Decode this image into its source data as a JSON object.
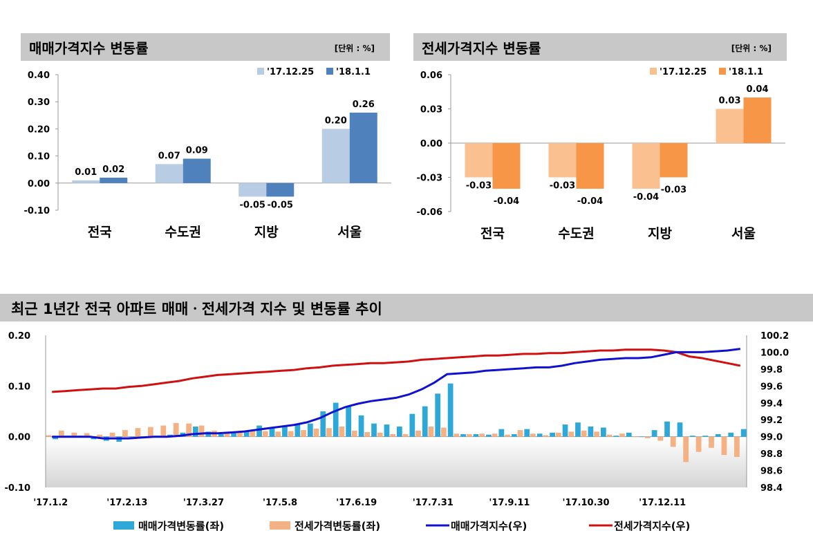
{
  "colors": {
    "sale_prev": "#b8cce4",
    "sale_curr": "#4f81bd",
    "jeonse_prev": "#fac090",
    "jeonse_curr": "#f79646",
    "weekly_sale_bar": "#2ea8d8",
    "weekly_jeonse_bar": "#f4b183",
    "sale_index_line": "#1010d0",
    "jeonse_index_line": "#d01010"
  },
  "chart_data": [
    {
      "type": "bar",
      "title": "매매가격지수 변동률",
      "unit": "[단위 : %]",
      "categories": [
        "전국",
        "수도권",
        "지방",
        "서울"
      ],
      "series": [
        {
          "name": "'17.12.25",
          "values": [
            0.01,
            0.07,
            -0.05,
            0.2
          ],
          "labels": [
            "0.01",
            "0.07",
            "-0.05",
            "0.20"
          ]
        },
        {
          "name": "'18.1.1",
          "values": [
            0.02,
            0.09,
            -0.05,
            0.26
          ],
          "labels": [
            "0.02",
            "0.09",
            "-0.05",
            "0.26"
          ]
        }
      ],
      "ylim": [
        -0.1,
        0.4
      ],
      "yticks": [
        -0.1,
        0.0,
        0.1,
        0.2,
        0.3,
        0.4
      ],
      "ytick_labels": [
        "-0.10",
        "0.00",
        "0.10",
        "0.20",
        "0.30",
        "0.40"
      ],
      "legend": "top-right"
    },
    {
      "type": "bar",
      "title": "전세가격지수 변동률",
      "unit": "[단위 : %]",
      "categories": [
        "전국",
        "수도권",
        "지방",
        "서울"
      ],
      "series": [
        {
          "name": "'17.12.25",
          "values": [
            -0.03,
            -0.03,
            -0.04,
            0.03
          ],
          "labels": [
            "-0.03",
            "-0.03",
            "-0.04",
            "0.03"
          ]
        },
        {
          "name": "'18.1.1",
          "values": [
            -0.04,
            -0.04,
            -0.03,
            0.04
          ],
          "labels": [
            "-0.04",
            "-0.04",
            "-0.03",
            "0.04"
          ]
        }
      ],
      "ylim": [
        -0.06,
        0.06
      ],
      "yticks": [
        -0.06,
        -0.03,
        0.0,
        0.03,
        0.06
      ],
      "ytick_labels": [
        "-0.06",
        "-0.03",
        "0.00",
        "0.03",
        "0.06"
      ],
      "legend": "top-right"
    },
    {
      "type": "bar+line",
      "title": "최근 1년간 전국 아파트 매매ㆍ전세가격 지수 및 변동률 추이",
      "x_tick_labels": [
        "'17.1.2",
        "'17.2.13",
        "'17.3.27",
        "'17.5.8",
        "'17.6.19",
        "'17.7.31",
        "'17.9.11",
        "'17.10.30",
        "'17.12.11"
      ],
      "y_left": {
        "lim": [
          -0.1,
          0.2
        ],
        "ticks": [
          -0.1,
          0.0,
          0.1,
          0.2
        ],
        "tick_labels": [
          "-0.10",
          "0.00",
          "0.10",
          "0.20"
        ]
      },
      "y_right": {
        "lim": [
          98.4,
          100.2
        ],
        "ticks": [
          98.4,
          98.6,
          98.8,
          99.0,
          99.2,
          99.4,
          99.6,
          99.8,
          100.0,
          100.2
        ],
        "tick_labels": [
          "98.4",
          "98.6",
          "98.8",
          "99.0",
          "99.2",
          "99.4",
          "99.6",
          "99.8",
          "100.0",
          "100.2"
        ]
      },
      "series": [
        {
          "name": "매매가격변동률(좌)",
          "kind": "bar",
          "axis": "left",
          "values": [
            -0.005,
            0.002,
            0.002,
            -0.005,
            -0.008,
            -0.01,
            0.0,
            0.0,
            0.002,
            0.004,
            0.008,
            0.02,
            0.01,
            0.005,
            0.007,
            0.012,
            0.022,
            0.016,
            0.02,
            0.024,
            0.026,
            0.05,
            0.067,
            0.06,
            0.042,
            0.026,
            0.024,
            0.02,
            0.045,
            0.06,
            0.085,
            0.105,
            0.005,
            0.005,
            0.004,
            0.015,
            0.005,
            0.015,
            0.006,
            0.008,
            0.024,
            0.028,
            0.02,
            0.018,
            0.002,
            0.008,
            0.0,
            0.013,
            0.03,
            0.028,
            0.002,
            0.002,
            0.005,
            0.008,
            0.015
          ]
        },
        {
          "name": "전세가격변동률(좌)",
          "kind": "bar",
          "axis": "left",
          "values": [
            0.003,
            0.012,
            0.008,
            0.007,
            0.004,
            0.008,
            0.013,
            0.017,
            0.019,
            0.022,
            0.027,
            0.026,
            0.022,
            0.012,
            0.01,
            0.011,
            0.012,
            0.011,
            0.01,
            0.011,
            0.013,
            0.016,
            0.017,
            0.02,
            0.012,
            0.009,
            0.008,
            0.005,
            0.005,
            0.012,
            0.02,
            0.018,
            0.006,
            0.005,
            0.006,
            0.006,
            0.004,
            0.013,
            0.006,
            0.003,
            0.008,
            0.01,
            0.012,
            0.01,
            0.004,
            0.006,
            0.0,
            -0.003,
            -0.008,
            -0.02,
            -0.05,
            -0.03,
            -0.022,
            -0.036,
            -0.04
          ]
        },
        {
          "name": "매매가격지수(우)",
          "kind": "line",
          "axis": "right",
          "values": [
            99.0,
            99.0,
            99.0,
            99.0,
            98.98,
            98.98,
            98.98,
            98.99,
            99.0,
            99.0,
            99.01,
            99.03,
            99.04,
            99.04,
            99.05,
            99.06,
            99.08,
            99.1,
            99.12,
            99.14,
            99.17,
            99.22,
            99.29,
            99.35,
            99.39,
            99.42,
            99.44,
            99.46,
            99.5,
            99.56,
            99.64,
            99.74,
            99.75,
            99.76,
            99.78,
            99.79,
            99.8,
            99.81,
            99.82,
            99.82,
            99.84,
            99.87,
            99.89,
            99.91,
            99.92,
            99.93,
            99.93,
            99.94,
            99.97,
            100.0,
            100.0,
            100.0,
            100.01,
            100.02,
            100.04
          ]
        },
        {
          "name": "전세가격지수(우)",
          "kind": "line",
          "axis": "right",
          "values": [
            99.53,
            99.54,
            99.55,
            99.56,
            99.57,
            99.57,
            99.59,
            99.6,
            99.62,
            99.64,
            99.66,
            99.69,
            99.71,
            99.73,
            99.74,
            99.75,
            99.76,
            99.77,
            99.78,
            99.79,
            99.81,
            99.82,
            99.84,
            99.85,
            99.86,
            99.87,
            99.87,
            99.88,
            99.89,
            99.91,
            99.92,
            99.93,
            99.94,
            99.95,
            99.96,
            99.96,
            99.97,
            99.98,
            99.98,
            99.99,
            99.99,
            100.0,
            100.01,
            100.02,
            100.02,
            100.03,
            100.03,
            100.03,
            100.02,
            100.0,
            99.95,
            99.93,
            99.9,
            99.87,
            99.84
          ]
        }
      ],
      "legend": "bottom"
    }
  ]
}
